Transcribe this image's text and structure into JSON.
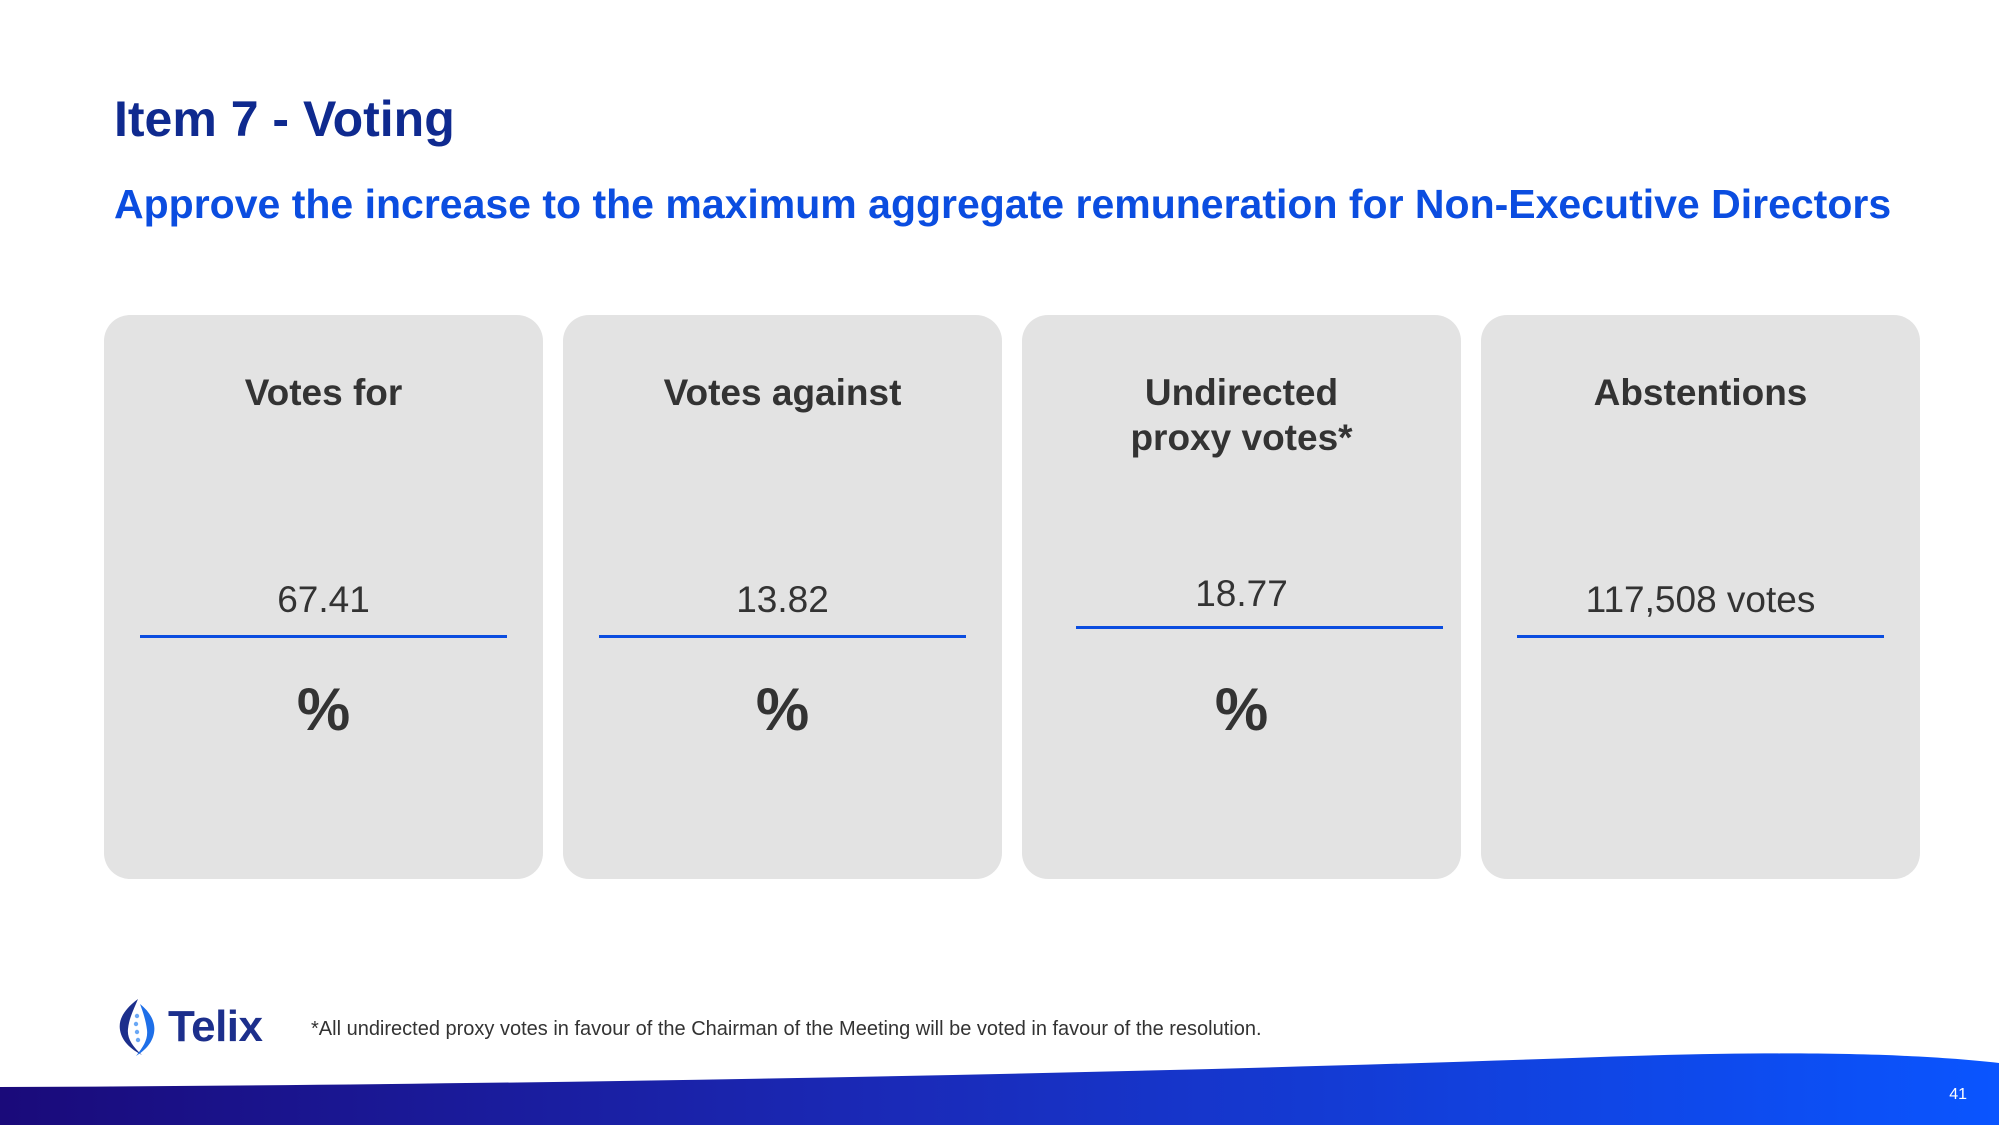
{
  "slide": {
    "title": "Item 7 - Voting",
    "subtitle": "Approve the increase to the maximum aggregate remuneration for Non-Executive Directors",
    "page_number": "41"
  },
  "cards": [
    {
      "heading": "Votes for",
      "value": "67.41",
      "unit": "%"
    },
    {
      "heading": "Votes against",
      "value": "13.82",
      "unit": "%"
    },
    {
      "heading": "Undirected\nproxy votes*",
      "value": "18.77",
      "unit": "%"
    },
    {
      "heading": "Abstentions",
      "value": "117,508 votes",
      "unit": ""
    }
  ],
  "footer": {
    "logo_text": "Telix",
    "footnote": "*All undirected proxy votes in favour of the Chairman of the Meeting will be voted in favour of the resolution."
  },
  "colors": {
    "title": "#0f2a8f",
    "subtitle": "#0b4de0",
    "card_background": "#e3e3e3",
    "accent_rule": "#0b4de0",
    "wave_start": "#1a0a7a",
    "wave_end": "#0a55ff"
  }
}
